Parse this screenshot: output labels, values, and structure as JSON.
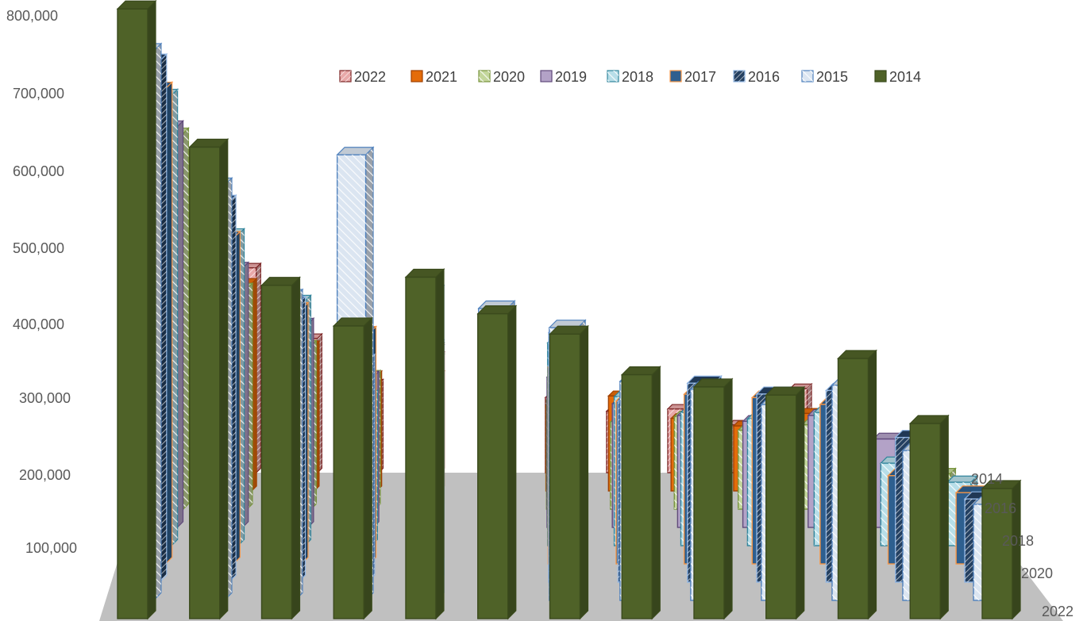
{
  "chart_data": {
    "type": "bar",
    "subtype": "3d-column",
    "y_ticks": [
      "800,000",
      "700,000",
      "600,000",
      "500,000",
      "400,000",
      "300,000",
      "200,000",
      "100,000"
    ],
    "ylim": [
      0,
      800000
    ],
    "depth_axis_labels": [
      "2014",
      "2016",
      "2018",
      "2020",
      "2022"
    ],
    "legend_position": "top",
    "legend": [
      "2022",
      "2021",
      "2020",
      "2019",
      "2018",
      "2017",
      "2016",
      "2015",
      "2014"
    ],
    "category_count": 13,
    "series": [
      {
        "name": "2022",
        "color": "#e8a8a8",
        "edge": "#7b2424",
        "pattern": "dense",
        "values": [
          680000,
          450000,
          295000,
          195000,
          255000,
          205000,
          165000,
          135000,
          140000,
          105000,
          185000,
          85000,
          45000
        ]
      },
      {
        "name": "2021",
        "color": "#e46c0a",
        "edge": "#a04000",
        "pattern": "solid",
        "values": [
          670000,
          415000,
          290000,
          230000,
          230000,
          200000,
          170000,
          190000,
          145000,
          130000,
          155000,
          85000,
          60000
        ]
      },
      {
        "name": "2020",
        "color": "#c3d69b",
        "edge": "#77933c",
        "pattern": "diag",
        "values": [
          690000,
          405000,
          300000,
          245000,
          275000,
          240000,
          200000,
          160000,
          170000,
          145000,
          155000,
          95000,
          65000
        ]
      },
      {
        "name": "2019",
        "color": "#b3a2c7",
        "edge": "#604a7b",
        "pattern": "solid",
        "values": [
          680000,
          440000,
          345000,
          255000,
          300000,
          300000,
          255000,
          210000,
          190000,
          180000,
          190000,
          150000,
          70000
        ]
      },
      {
        "name": "2018",
        "color": "#b7dee8",
        "edge": "#31859c",
        "pattern": "diag",
        "values": [
          710000,
          490000,
          385000,
          235000,
          310000,
          325000,
          320000,
          235000,
          210000,
          200000,
          210000,
          130000,
          100000
        ]
      },
      {
        "name": "2017",
        "color": "#2e5f8f",
        "edge": "#f79646",
        "pattern": "solid",
        "values": [
          700000,
          480000,
          375000,
          340000,
          315000,
          360000,
          290000,
          240000,
          250000,
          245000,
          235000,
          130000,
          105000
        ]
      },
      {
        "name": "2016",
        "color": "#244061",
        "edge": "#8eb4e3",
        "pattern": "dense",
        "values": [
          720000,
          525000,
          385000,
          305000,
          325000,
          365000,
          345000,
          250000,
          275000,
          260000,
          265000,
          200000,
          115000
        ]
      },
      {
        "name": "2015",
        "color": "#dbe5f1",
        "edge": "#4f81bd",
        "pattern": "diag",
        "values": [
          715000,
          540000,
          395000,
          580000,
          400000,
          380000,
          355000,
          285000,
          275000,
          255000,
          280000,
          195000,
          125000
        ]
      },
      {
        "name": "2014",
        "color": "#4f6228",
        "edge": "#3a4a1c",
        "pattern": "solid",
        "values": [
          750000,
          580000,
          410000,
          360000,
          420000,
          375000,
          350000,
          300000,
          285000,
          275000,
          320000,
          240000,
          160000
        ]
      }
    ]
  }
}
